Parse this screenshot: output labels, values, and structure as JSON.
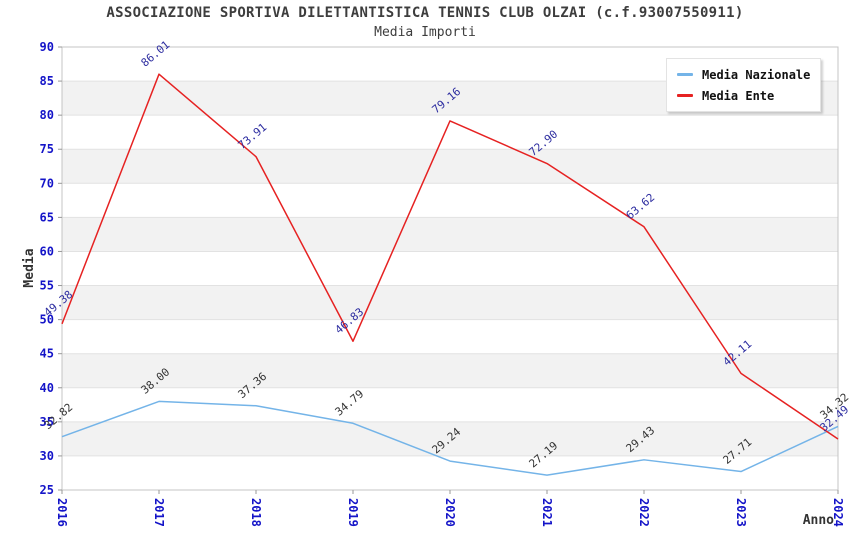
{
  "title": "ASSOCIAZIONE SPORTIVA DILETTANTISTICA TENNIS CLUB OLZAI (c.f.93007550911)",
  "subtitle": "Media Importi",
  "legend": {
    "items": [
      {
        "label": "Media Nazionale"
      },
      {
        "label": "Media Ente"
      }
    ]
  },
  "axes": {
    "y_title": "Media",
    "x_title": "Anno",
    "y_tick_labels": [
      "25",
      "30",
      "35",
      "40",
      "45",
      "50",
      "55",
      "60",
      "65",
      "70",
      "75",
      "80",
      "85",
      "90"
    ],
    "x_tick_labels": [
      "2016",
      "2017",
      "2018",
      "2019",
      "2020",
      "2021",
      "2022",
      "2023",
      "2024"
    ]
  },
  "chart_data": {
    "type": "line",
    "x": [
      "2016",
      "2017",
      "2018",
      "2019",
      "2020",
      "2021",
      "2022",
      "2023",
      "2024"
    ],
    "series": [
      {
        "name": "Media Nazionale",
        "color": "#74b4e8",
        "label_color": "#333333",
        "values": [
          "32.82",
          "38.00",
          "37.36",
          "34.79",
          "29.24",
          "27.19",
          "29.43",
          "27.71",
          "34.32"
        ]
      },
      {
        "name": "Media Ente",
        "color": "#e62222",
        "label_color": "#2d2da0",
        "values": [
          "49.38",
          "86.01",
          "73.91",
          "46.83",
          "79.16",
          "72.90",
          "63.62",
          "42.11",
          "32.49"
        ]
      }
    ],
    "ylim": [
      25,
      90
    ],
    "y_step": 5,
    "grid": true,
    "band_colors": [
      "#ffffff",
      "#f2f2f2"
    ],
    "gridline_color": "#e2e2e2",
    "border_color": "#c4c4c4",
    "tick_label_color": "#1414c8",
    "legend_position": "top-right"
  }
}
